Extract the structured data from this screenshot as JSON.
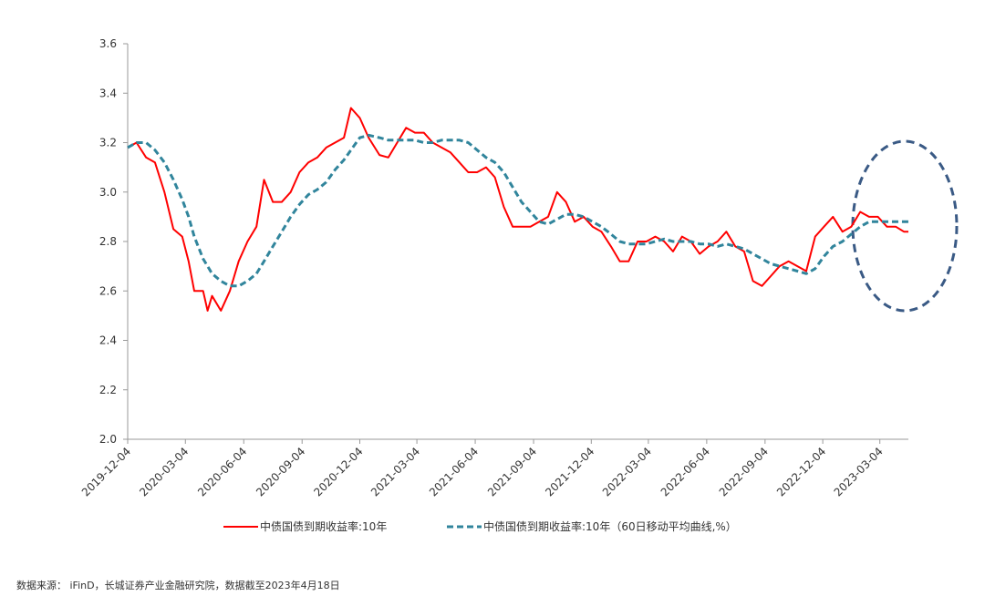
{
  "chart_data": {
    "type": "line",
    "x": [
      "2019-12-04",
      "2019-12-18",
      "2020-01-02",
      "2020-01-16",
      "2020-01-31",
      "2020-02-14",
      "2020-02-28",
      "2020-03-09",
      "2020-03-18",
      "2020-04-01",
      "2020-04-08",
      "2020-04-15",
      "2020-04-29",
      "2020-05-13",
      "2020-05-27",
      "2020-06-10",
      "2020-06-24",
      "2020-07-06",
      "2020-07-20",
      "2020-08-03",
      "2020-08-17",
      "2020-08-31",
      "2020-09-14",
      "2020-09-28",
      "2020-10-12",
      "2020-10-26",
      "2020-11-09",
      "2020-11-20",
      "2020-12-04",
      "2020-12-18",
      "2021-01-04",
      "2021-01-18",
      "2021-02-01",
      "2021-02-15",
      "2021-03-01",
      "2021-03-15",
      "2021-03-29",
      "2021-04-12",
      "2021-04-26",
      "2021-05-10",
      "2021-05-24",
      "2021-06-07",
      "2021-06-21",
      "2021-07-05",
      "2021-07-19",
      "2021-08-02",
      "2021-08-16",
      "2021-08-30",
      "2021-09-13",
      "2021-09-27",
      "2021-10-11",
      "2021-10-25",
      "2021-11-08",
      "2021-11-22",
      "2021-12-06",
      "2021-12-20",
      "2022-01-04",
      "2022-01-18",
      "2022-02-01",
      "2022-02-15",
      "2022-03-01",
      "2022-03-15",
      "2022-03-29",
      "2022-04-12",
      "2022-04-26",
      "2022-05-10",
      "2022-05-24",
      "2022-06-07",
      "2022-06-21",
      "2022-07-05",
      "2022-07-19",
      "2022-08-02",
      "2022-08-16",
      "2022-08-30",
      "2022-09-13",
      "2022-09-27",
      "2022-10-11",
      "2022-10-25",
      "2022-11-08",
      "2022-11-22",
      "2022-12-06",
      "2022-12-20",
      "2023-01-04",
      "2023-01-18",
      "2023-02-01",
      "2023-02-15",
      "2023-03-01",
      "2023-03-15",
      "2023-03-29",
      "2023-04-11",
      "2023-04-18"
    ],
    "series": [
      {
        "name": "中债国债到期收益率:10年",
        "color": "#ff0000",
        "dash": false,
        "values": [
          3.18,
          3.2,
          3.14,
          3.12,
          3.0,
          2.85,
          2.82,
          2.72,
          2.6,
          2.6,
          2.52,
          2.58,
          2.52,
          2.6,
          2.72,
          2.8,
          2.86,
          3.05,
          2.96,
          2.96,
          3.0,
          3.08,
          3.12,
          3.14,
          3.18,
          3.2,
          3.22,
          3.34,
          3.3,
          3.22,
          3.15,
          3.14,
          3.2,
          3.26,
          3.24,
          3.24,
          3.2,
          3.18,
          3.16,
          3.12,
          3.08,
          3.08,
          3.1,
          3.06,
          2.94,
          2.86,
          2.86,
          2.86,
          2.88,
          2.9,
          3.0,
          2.96,
          2.88,
          2.9,
          2.86,
          2.84,
          2.78,
          2.72,
          2.72,
          2.8,
          2.8,
          2.82,
          2.8,
          2.76,
          2.82,
          2.8,
          2.75,
          2.78,
          2.8,
          2.84,
          2.78,
          2.76,
          2.64,
          2.62,
          2.66,
          2.7,
          2.72,
          2.7,
          2.68,
          2.82,
          2.86,
          2.9,
          2.84,
          2.86,
          2.92,
          2.9,
          2.9,
          2.86,
          2.86,
          2.84,
          2.84
        ]
      },
      {
        "name": "中债国债到期收益率:10年（60日移动平均曲线,%）",
        "color": "#31859c",
        "dash": true,
        "values": [
          3.18,
          3.2,
          3.2,
          3.17,
          3.12,
          3.05,
          2.97,
          2.9,
          2.82,
          2.73,
          2.7,
          2.67,
          2.64,
          2.62,
          2.62,
          2.64,
          2.67,
          2.72,
          2.78,
          2.84,
          2.9,
          2.95,
          2.99,
          3.01,
          3.04,
          3.09,
          3.13,
          3.17,
          3.22,
          3.23,
          3.22,
          3.21,
          3.21,
          3.21,
          3.21,
          3.2,
          3.2,
          3.21,
          3.21,
          3.21,
          3.2,
          3.17,
          3.14,
          3.12,
          3.08,
          3.02,
          2.96,
          2.92,
          2.88,
          2.87,
          2.89,
          2.91,
          2.91,
          2.9,
          2.88,
          2.86,
          2.83,
          2.8,
          2.79,
          2.79,
          2.79,
          2.8,
          2.81,
          2.8,
          2.8,
          2.8,
          2.79,
          2.79,
          2.78,
          2.79,
          2.78,
          2.77,
          2.75,
          2.73,
          2.71,
          2.7,
          2.69,
          2.68,
          2.67,
          2.69,
          2.74,
          2.78,
          2.8,
          2.83,
          2.86,
          2.88,
          2.88,
          2.88,
          2.88,
          2.88,
          2.88
        ]
      }
    ],
    "xlim": [
      "2019-12-04",
      "2023-04-18"
    ],
    "xticks": [
      "2019-12-04",
      "2020-03-04",
      "2020-06-04",
      "2020-09-04",
      "2020-12-04",
      "2021-03-04",
      "2021-06-04",
      "2021-09-04",
      "2021-12-04",
      "2022-03-04",
      "2022-06-04",
      "2022-09-04",
      "2022-12-04",
      "2023-03-04"
    ],
    "ylim": [
      2.0,
      3.6
    ],
    "yticks": [
      {
        "value": 2.0,
        "label": "2.0"
      },
      2.2,
      2.4,
      2.6,
      2.8,
      {
        "value": 3.0,
        "label": "3.0"
      },
      3.2,
      3.4,
      3.6
    ],
    "grid": false,
    "source": "数据来源： iFinD，长城证券产业金融研究院，数据截至2023年4月18日"
  }
}
